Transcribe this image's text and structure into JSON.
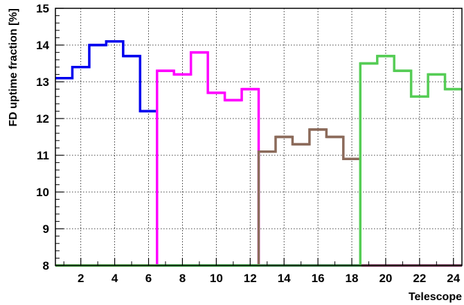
{
  "chart_data": {
    "type": "step",
    "title": "",
    "xlabel": "Telescope",
    "ylabel": "FD uptime fraction [%]",
    "xlim": [
      0.5,
      24.5
    ],
    "ylim": [
      8,
      15
    ],
    "x_ticks": [
      2,
      4,
      6,
      8,
      10,
      12,
      14,
      16,
      18,
      20,
      22,
      24
    ],
    "y_ticks": [
      8,
      9,
      10,
      11,
      12,
      13,
      14,
      15
    ],
    "grid": true,
    "legend": "none",
    "series": [
      {
        "color": "#0000ee",
        "x": [
          1,
          2,
          3,
          4,
          5,
          6
        ],
        "values": [
          13.1,
          13.4,
          14.0,
          14.1,
          13.7,
          12.2
        ]
      },
      {
        "color": "#ff00ff",
        "x": [
          7,
          8,
          9,
          10,
          11,
          12
        ],
        "values": [
          13.3,
          13.2,
          13.8,
          12.7,
          12.5,
          12.8
        ]
      },
      {
        "color": "#8b6a5a",
        "x": [
          13,
          14,
          15,
          16,
          17,
          18
        ],
        "values": [
          11.1,
          11.5,
          11.3,
          11.7,
          11.5,
          10.9
        ]
      },
      {
        "color": "#55cc55",
        "x": [
          19,
          20,
          21,
          22,
          23,
          24
        ],
        "values": [
          13.5,
          13.7,
          13.3,
          12.6,
          13.2,
          12.8
        ]
      }
    ]
  }
}
